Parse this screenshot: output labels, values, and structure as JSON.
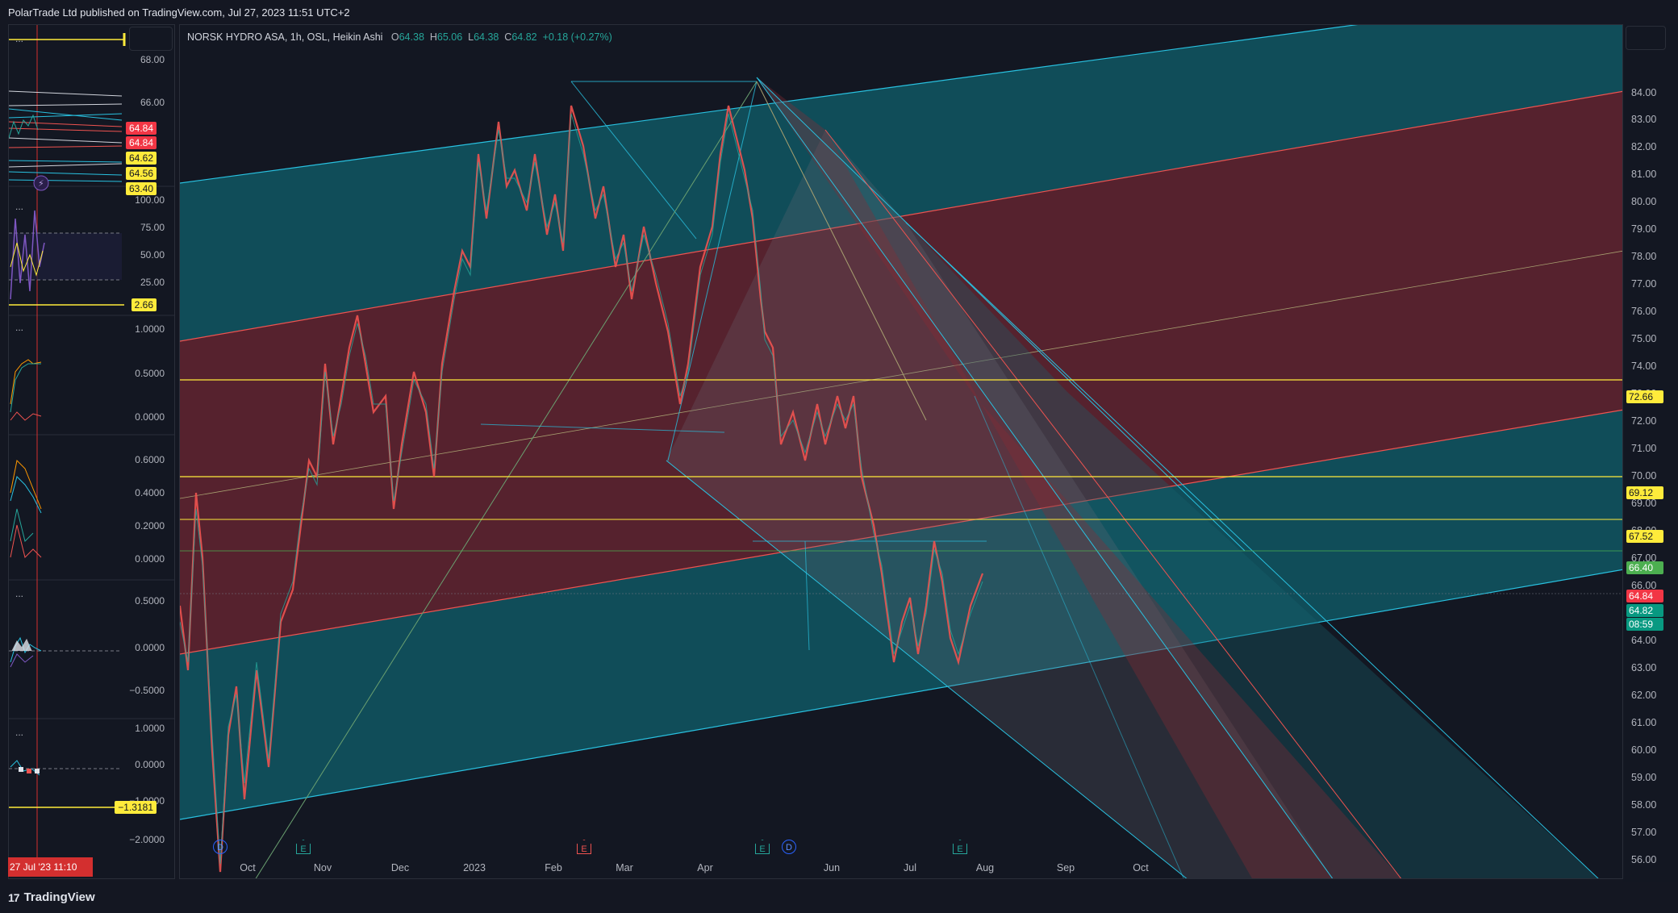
{
  "header": {
    "published": "PolarTrade Ltd published on TradingView.com, Jul 27, 2023 11:51 UTC+2"
  },
  "legend": {
    "symbol": "NORSK HYDRO ASA, 1h, OSL, Heikin Ashi",
    "o_label": "O",
    "o": "64.38",
    "h_label": "H",
    "h": "65.06",
    "l_label": "L",
    "l": "64.38",
    "c_label": "C",
    "c": "64.82",
    "change": "+0.18 (+0.27%)"
  },
  "price_axis": {
    "ticks": [
      "84.00",
      "83.00",
      "82.00",
      "81.00",
      "80.00",
      "79.00",
      "78.00",
      "77.00",
      "76.00",
      "75.00",
      "74.00",
      "73.00",
      "72.00",
      "71.00",
      "70.00",
      "69.00",
      "68.00",
      "67.00",
      "66.00",
      "65.00",
      "64.00",
      "63.00",
      "62.00",
      "61.00",
      "60.00",
      "59.00",
      "58.00",
      "57.00",
      "56.00"
    ],
    "badges": [
      {
        "label": "72.66",
        "bg": "#ffeb3b",
        "fg": "#131722"
      },
      {
        "label": "69.12",
        "bg": "#ffeb3b",
        "fg": "#131722"
      },
      {
        "label": "67.52",
        "bg": "#ffeb3b",
        "fg": "#131722"
      },
      {
        "label": "66.40",
        "bg": "#4caf50",
        "fg": "#ffffff"
      },
      {
        "label": "64.84",
        "bg": "#f23645",
        "fg": "#ffffff"
      },
      {
        "label": "64.82",
        "bg": "#089981",
        "fg": "#ffffff"
      },
      {
        "label": "08:59",
        "bg": "#089981",
        "fg": "#ffffff"
      }
    ]
  },
  "time_axis": [
    "Oct",
    "Nov",
    "Dec",
    "2023",
    "Feb",
    "Mar",
    "Apr",
    "Jun",
    "Jul",
    "Aug",
    "Sep",
    "Oct"
  ],
  "events": [
    {
      "type": "d",
      "label": "D"
    },
    {
      "type": "e",
      "label": "E"
    },
    {
      "type": "e-red",
      "label": "E"
    },
    {
      "type": "e",
      "label": "E"
    },
    {
      "type": "d",
      "label": "D"
    },
    {
      "type": "e",
      "label": "E"
    }
  ],
  "left_panes": {
    "pane1": {
      "dots": "...",
      "ticks": [
        "68.00",
        "66.00"
      ],
      "badges": [
        {
          "label": "64.84",
          "bg": "#f23645",
          "fg": "#ffffff"
        },
        {
          "label": "64.84",
          "bg": "#f23645",
          "fg": "#ffffff"
        },
        {
          "label": "64.62",
          "bg": "#ffeb3b",
          "fg": "#131722"
        },
        {
          "label": "64.56",
          "bg": "#ffeb3b",
          "fg": "#131722"
        },
        {
          "label": "63.40",
          "bg": "#ffeb3b",
          "fg": "#131722"
        }
      ]
    },
    "pane2": {
      "dots": "...",
      "ticks": [
        "100.00",
        "75.00",
        "50.00",
        "25.00"
      ],
      "badge": "2.66"
    },
    "pane3": {
      "dots": "...",
      "ticks": [
        "1.0000",
        "0.5000",
        "0.0000"
      ]
    },
    "pane4": {
      "ticks": [
        "0.6000",
        "0.4000",
        "0.2000",
        "0.0000"
      ]
    },
    "pane5": {
      "dots": "...",
      "ticks": [
        "0.5000",
        "0.0000",
        "−0.5000"
      ]
    },
    "pane6": {
      "dots": "...",
      "ticks": [
        "1.0000",
        "0.0000",
        "−1.0000",
        "−2.0000"
      ],
      "badge": "−1.3181"
    },
    "date_badge": "27 Jul '23   11:10"
  },
  "footer": {
    "brand": "TradingView"
  },
  "colors": {
    "teal_fill": "#11535f",
    "red_fill": "#5e2330",
    "channel_line": "#29c1e0",
    "candle_up": "#26a69a",
    "candle_down": "#ef5350"
  }
}
